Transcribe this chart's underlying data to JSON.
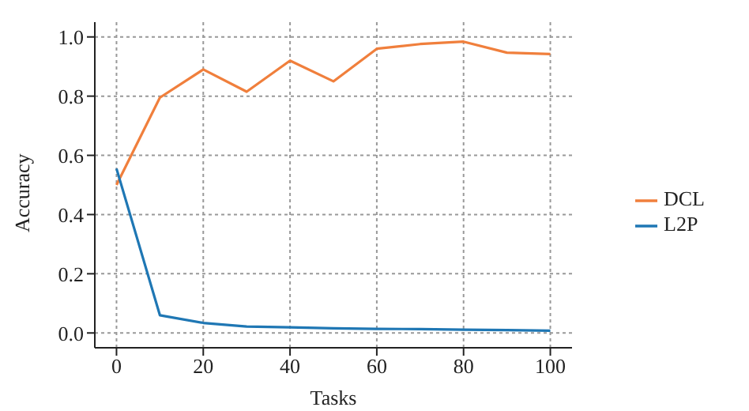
{
  "chart_data": {
    "type": "line",
    "xlabel": "Tasks",
    "ylabel": "Accuracy",
    "x": [
      0,
      10,
      20,
      30,
      40,
      50,
      60,
      70,
      80,
      90,
      100
    ],
    "series": [
      {
        "name": "DCL",
        "color": "#f07f3c",
        "values": [
          0.5,
          0.795,
          0.89,
          0.815,
          0.92,
          0.85,
          0.96,
          0.976,
          0.984,
          0.947,
          0.942
        ]
      },
      {
        "name": "L2P",
        "color": "#1f77b4",
        "values": [
          0.555,
          0.06,
          0.034,
          0.022,
          0.019,
          0.016,
          0.014,
          0.013,
          0.011,
          0.01,
          0.008
        ]
      }
    ],
    "xlim": [
      -5,
      105
    ],
    "xticks": [
      0,
      20,
      40,
      60,
      80,
      100
    ],
    "ylim": [
      -0.05,
      1.05
    ],
    "yticks": [
      {
        "value": 0,
        "label": "0.0"
      },
      {
        "value": 0.2,
        "label": "0.2"
      },
      {
        "value": 0.4,
        "label": "0.4"
      },
      {
        "value": 0.6,
        "label": "0.6"
      },
      {
        "value": 0.8,
        "label": "0.8"
      },
      {
        "value": 1,
        "label": "1.0"
      }
    ],
    "grid": true,
    "legend": "right",
    "marker": "none",
    "line_style": "solid"
  }
}
